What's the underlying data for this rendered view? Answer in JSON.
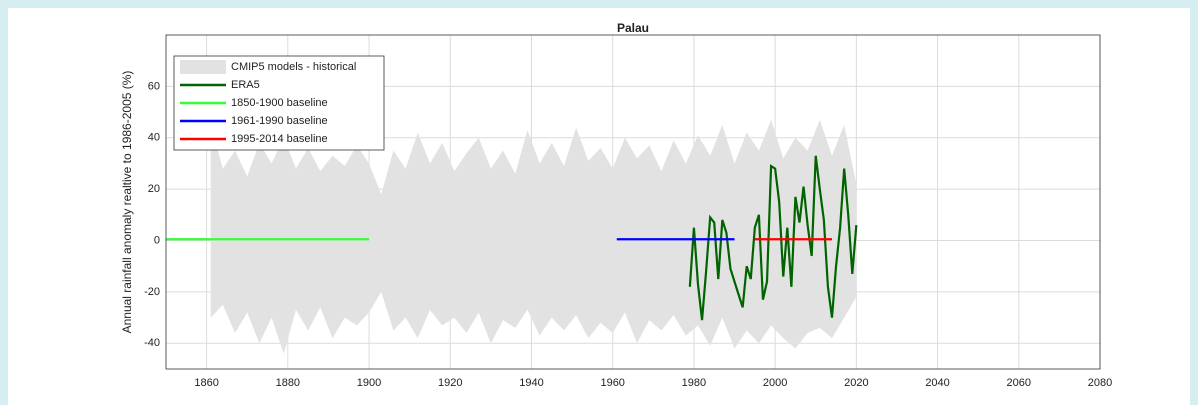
{
  "chart_data": {
    "type": "line",
    "title": "Palau",
    "y_label": "Annual rainfall anomaly realtive to 1986-2005 (%)",
    "xlim": [
      1850,
      2080
    ],
    "ylim": [
      -50,
      80
    ],
    "xticks": [
      1860,
      1880,
      1900,
      1920,
      1940,
      1960,
      1980,
      2000,
      2020,
      2040,
      2060,
      2080
    ],
    "yticks": [
      -40,
      -20,
      0,
      20,
      40,
      60
    ],
    "grid": true,
    "legend": "upper-left",
    "bands": [
      {
        "name": "CMIP5 models - historical",
        "color": "#e2e2e2",
        "x": [
          1861,
          1864,
          1867,
          1870,
          1873,
          1876,
          1879,
          1882,
          1885,
          1888,
          1891,
          1894,
          1897,
          1900,
          1903,
          1906,
          1909,
          1912,
          1915,
          1918,
          1921,
          1924,
          1927,
          1930,
          1933,
          1936,
          1939,
          1942,
          1945,
          1948,
          1951,
          1954,
          1957,
          1960,
          1963,
          1966,
          1969,
          1972,
          1975,
          1978,
          1981,
          1984,
          1987,
          1990,
          1993,
          1996,
          1999,
          2002,
          2005,
          2008,
          2011,
          2014,
          2017,
          2020
        ],
        "upper": [
          45,
          28,
          35,
          25,
          38,
          30,
          40,
          28,
          36,
          27,
          33,
          29,
          37,
          30,
          18,
          35,
          28,
          42,
          30,
          38,
          27,
          34,
          40,
          28,
          35,
          26,
          43,
          30,
          38,
          29,
          44,
          31,
          36,
          28,
          40,
          32,
          37,
          27,
          39,
          30,
          41,
          33,
          45,
          30,
          42,
          35,
          47,
          32,
          40,
          35,
          47,
          33,
          45,
          22
        ],
        "lower": [
          -30,
          -25,
          -36,
          -28,
          -40,
          -30,
          -44,
          -27,
          -35,
          -26,
          -38,
          -30,
          -33,
          -28,
          -20,
          -35,
          -30,
          -38,
          -27,
          -33,
          -30,
          -36,
          -28,
          -40,
          -31,
          -34,
          -27,
          -37,
          -30,
          -35,
          -29,
          -38,
          -32,
          -36,
          -28,
          -40,
          -31,
          -35,
          -29,
          -37,
          -33,
          -41,
          -30,
          -42,
          -35,
          -40,
          -33,
          -38,
          -42,
          -36,
          -34,
          -38,
          -30,
          -22
        ]
      }
    ],
    "series": [
      {
        "name": "ERA5",
        "color": "#006400",
        "x": [
          1979,
          1980,
          1981,
          1982,
          1983,
          1984,
          1985,
          1986,
          1987,
          1988,
          1989,
          1990,
          1991,
          1992,
          1993,
          1994,
          1995,
          1996,
          1997,
          1998,
          1999,
          2000,
          2001,
          2002,
          2003,
          2004,
          2005,
          2006,
          2007,
          2008,
          2009,
          2010,
          2011,
          2012,
          2013,
          2014,
          2015,
          2016,
          2017,
          2018,
          2019,
          2020
        ],
        "values": [
          -18,
          5,
          -17,
          -31,
          -12,
          9,
          7,
          -15,
          8,
          3,
          -11,
          -16,
          -21,
          -26,
          -10,
          -15,
          5,
          10,
          -23,
          -16,
          29,
          28,
          15,
          -14,
          5,
          -18,
          17,
          7,
          21,
          6,
          -6,
          33,
          20,
          8,
          -18,
          -30,
          -10,
          5,
          28,
          10,
          -13,
          6
        ]
      },
      {
        "name": "1850-1900 baseline",
        "color": "#33ff33",
        "x": [
          1850,
          1900
        ],
        "values": [
          0.5,
          0.5
        ]
      },
      {
        "name": "1961-1990 baseline",
        "color": "#0000ff",
        "x": [
          1961,
          1990
        ],
        "values": [
          0.5,
          0.5
        ]
      },
      {
        "name": "1995-2014 baseline",
        "color": "#ff0000",
        "x": [
          1995,
          2014
        ],
        "values": [
          0.5,
          0.5
        ]
      }
    ]
  }
}
